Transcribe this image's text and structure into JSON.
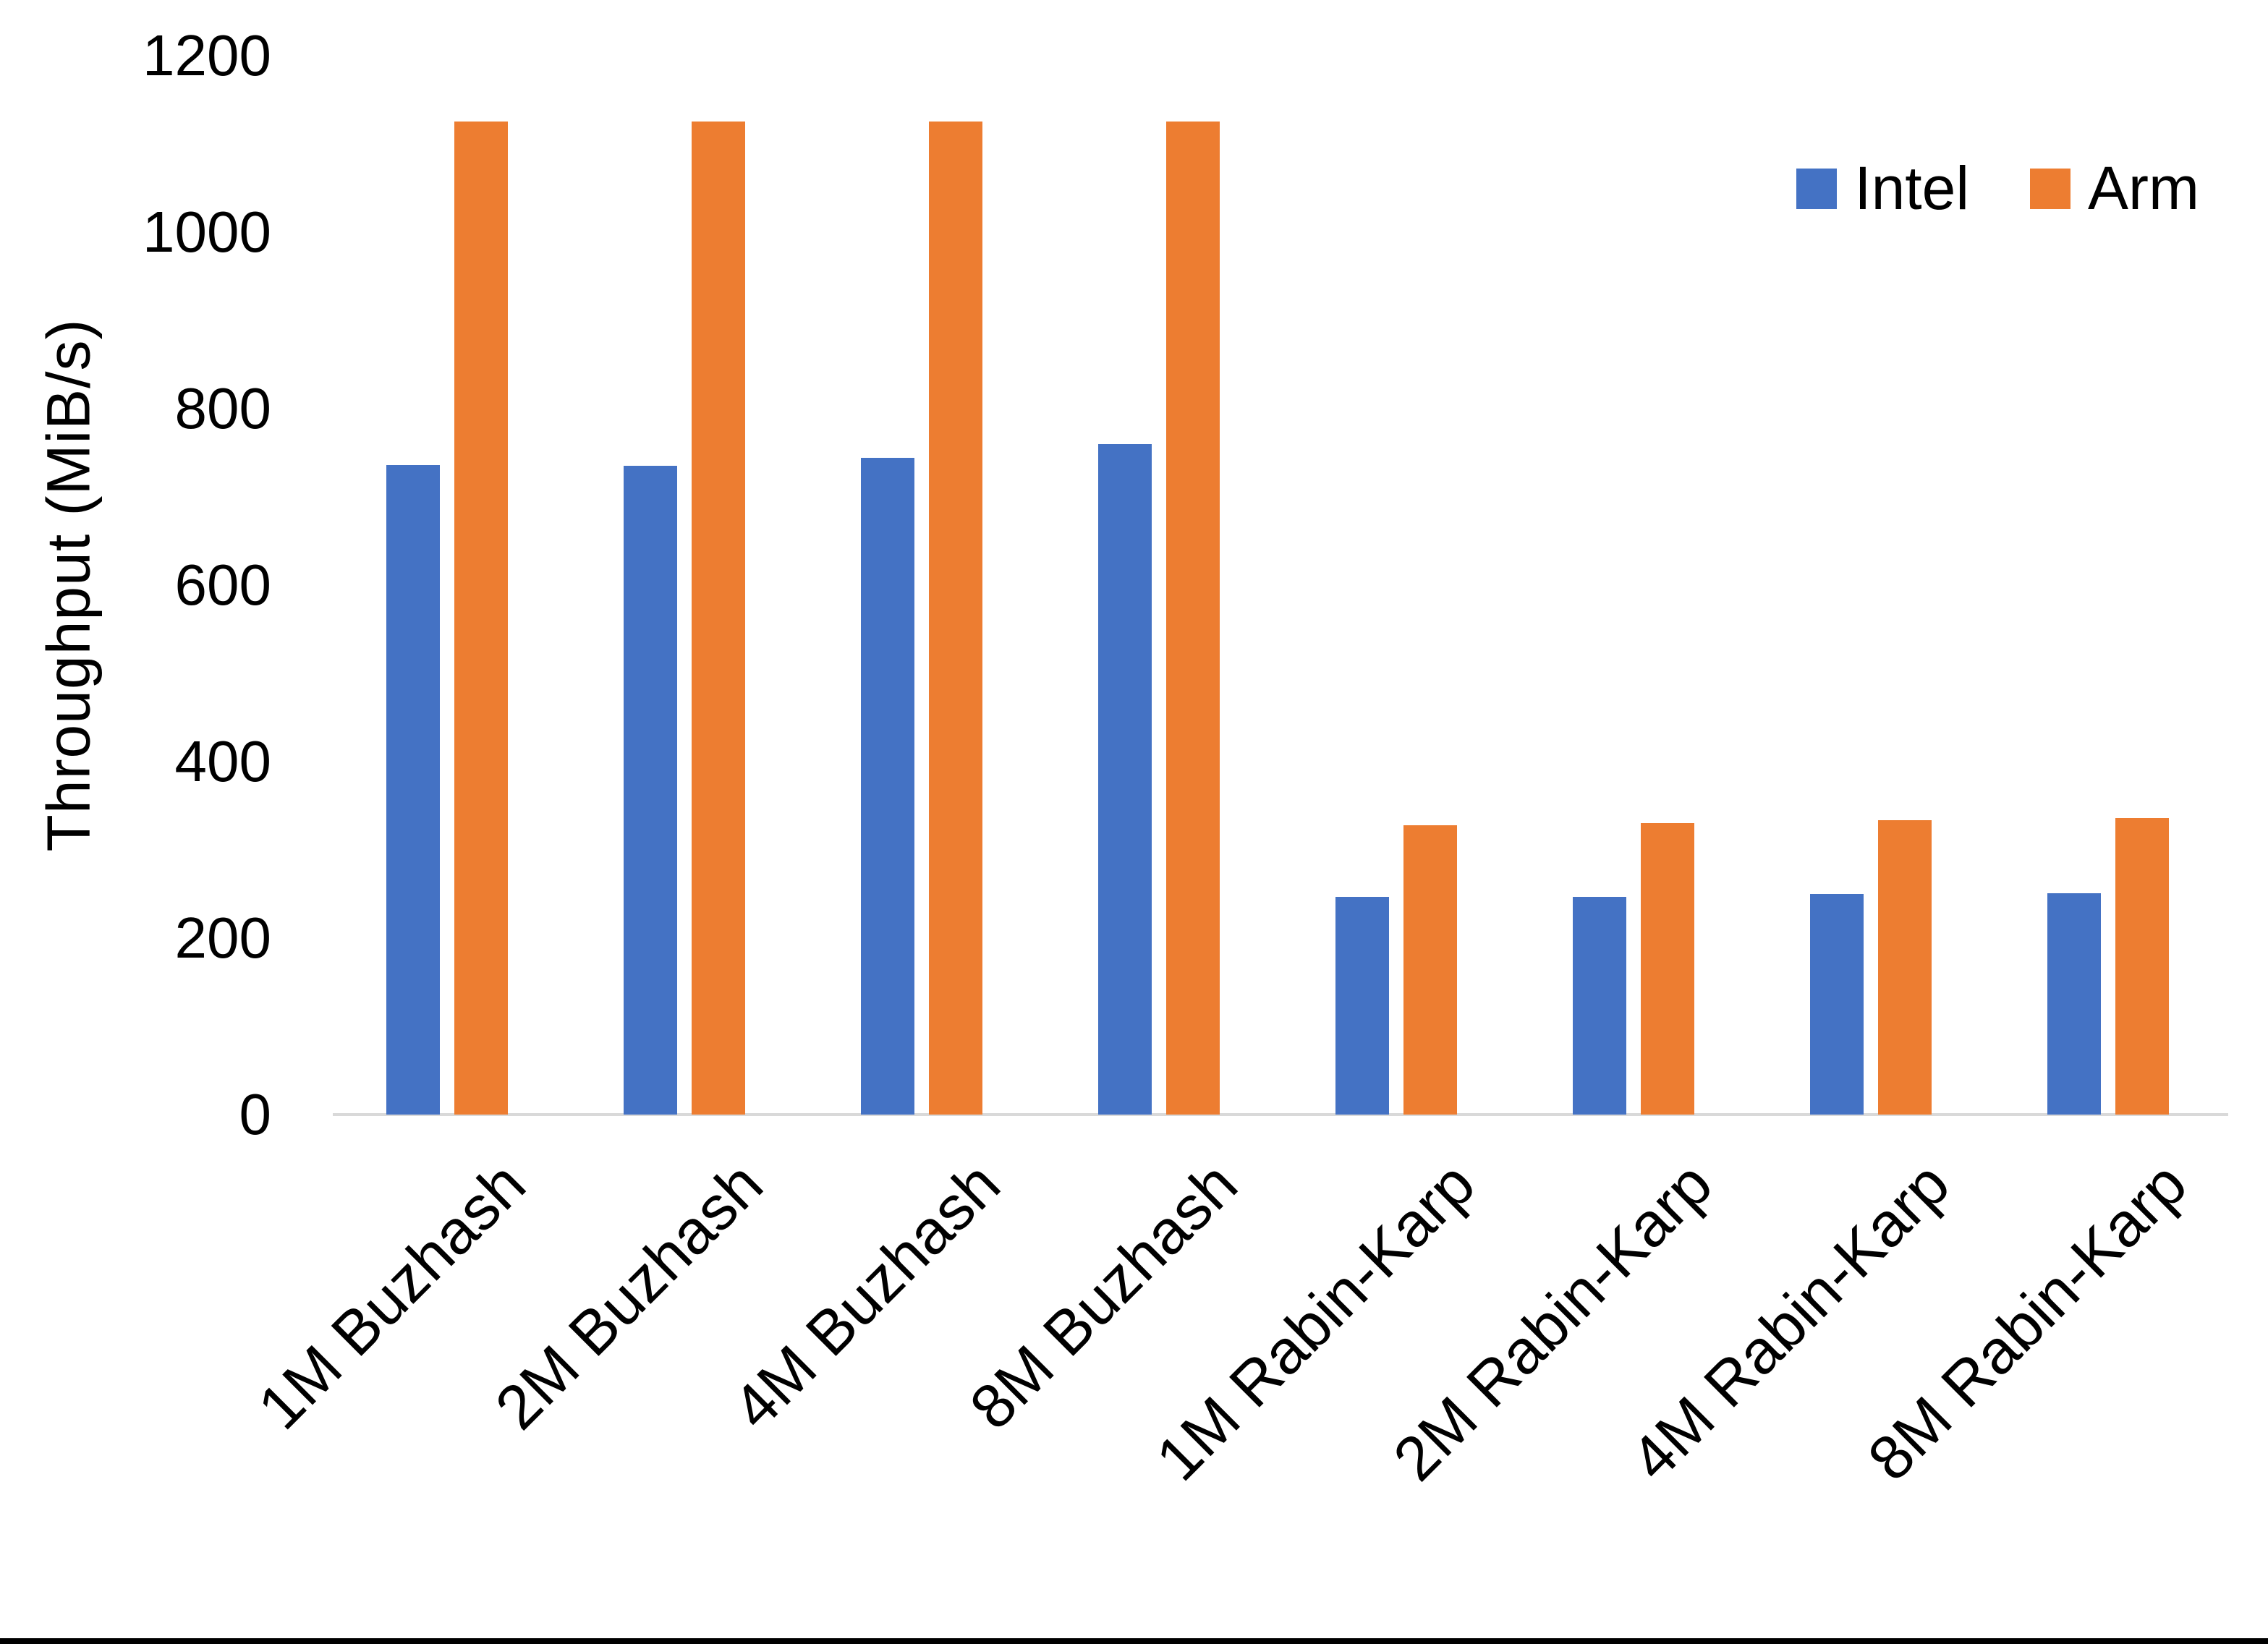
{
  "chart_data": {
    "type": "bar",
    "title": "",
    "ylabel": "Throughput (MiB/s)",
    "xlabel": "",
    "ylim": [
      0,
      1200
    ],
    "yticks": [
      0,
      200,
      400,
      600,
      800,
      1000,
      1200
    ],
    "grid": false,
    "legend_position": "top-right",
    "categories": [
      "1M Buzhash",
      "2M Buzhash",
      "4M Buzhash",
      "8M Buzhash",
      "1M Rabin-Karp",
      "2M Rabin-Karp",
      "4M Rabin-Karp",
      "8M Rabin-Karp"
    ],
    "series": [
      {
        "name": "Intel",
        "color": "#4472C4",
        "values": [
          736,
          735,
          744,
          760,
          247,
          247,
          250,
          251
        ]
      },
      {
        "name": "Arm",
        "color": "#ED7D31",
        "values": [
          1125,
          1125,
          1125,
          1125,
          328,
          330,
          334,
          336
        ]
      }
    ],
    "colors": {
      "intel": "#4472C4",
      "arm": "#ED7D31",
      "axis_line": "#D9D9D9",
      "text": "#000000",
      "background": "#FFFFFF",
      "bottom_border": "#000000"
    }
  }
}
